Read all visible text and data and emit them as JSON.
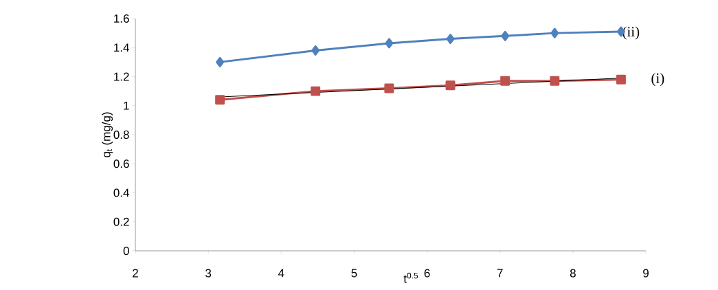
{
  "chart_data": {
    "type": "line",
    "xlabel": "t$^{0.5}$",
    "ylabel": "q$_{t}$  (mg/g)",
    "xlim": [
      2,
      9
    ],
    "xticks": [
      2,
      3,
      4,
      5,
      6,
      7,
      8,
      9
    ],
    "ylim": [
      0,
      1.6
    ],
    "yticks": [
      0,
      0.2,
      0.4,
      0.6,
      0.8,
      1,
      1.2,
      1.4,
      1.6
    ],
    "grid": false,
    "series": [
      {
        "name": "(ii)",
        "color": "#4f81bd",
        "marker": "diamond",
        "x": [
          3.16,
          4.47,
          5.48,
          6.32,
          7.07,
          7.75,
          8.66
        ],
        "values": [
          1.3,
          1.38,
          1.43,
          1.46,
          1.48,
          1.5,
          1.51
        ]
      },
      {
        "name": "(i)",
        "color": "#c0504d",
        "marker": "square",
        "x": [
          3.16,
          4.47,
          5.48,
          6.32,
          7.07,
          7.75,
          8.66
        ],
        "values": [
          1.04,
          1.1,
          1.12,
          1.14,
          1.17,
          1.17,
          1.18
        ]
      },
      {
        "color": "#000000",
        "marker": "none",
        "x": [
          3.16,
          8.66
        ],
        "values": [
          1.06,
          1.19
        ]
      }
    ]
  }
}
